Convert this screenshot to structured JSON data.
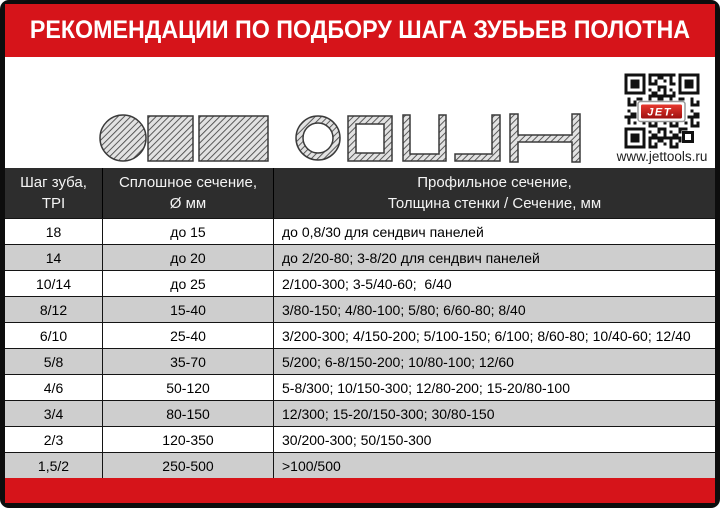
{
  "title": "РЕКОМЕНДАЦИИ ПО ПОДБОРУ ШАГА ЗУБЬЕВ ПОЛОТНА",
  "website": "www.jettools.ru",
  "qr_logo": "JET.",
  "colors": {
    "brand_red": "#d6141a",
    "table_header_bg": "#2d2d2d",
    "row_alt_gray": "#cecece",
    "frame_black": "#0d0d0d"
  },
  "icons": [
    "solid-circle",
    "solid-square",
    "solid-rectangle",
    "pipe-profile",
    "box-tube-profile",
    "u-channel-profile",
    "l-angle-profile",
    "h-beam-profile",
    "qr-code",
    "jet-logo"
  ],
  "table": {
    "columns": [
      {
        "line1": "Шаг зуба,",
        "line2": "TPI"
      },
      {
        "line1": "Сплошное сечение,",
        "line2": "Ø мм"
      },
      {
        "line1": "Профильное сечение,",
        "line2": "Толщина стенки / Сечение, мм"
      }
    ],
    "rows": [
      {
        "tpi": "18",
        "solid": "до 15",
        "profile": "до 0,8/30 для сендвич панелей"
      },
      {
        "tpi": "14",
        "solid": "до 20",
        "profile": "до 2/20-80; 3-8/20 для сендвич панелей"
      },
      {
        "tpi": "10/14",
        "solid": "до 25",
        "profile": "2/100-300; 3-5/40-60;  6/40"
      },
      {
        "tpi": "8/12",
        "solid": "15-40",
        "profile": "3/80-150; 4/80-100; 5/80; 6/60-80; 8/40"
      },
      {
        "tpi": "6/10",
        "solid": "25-40",
        "profile": "3/200-300; 4/150-200; 5/100-150; 6/100; 8/60-80; 10/40-60; 12/40"
      },
      {
        "tpi": "5/8",
        "solid": "35-70",
        "profile": "5/200; 6-8/150-200; 10/80-100; 12/60"
      },
      {
        "tpi": "4/6",
        "solid": "50-120",
        "profile": "5-8/300; 10/150-300; 12/80-200; 15-20/80-100"
      },
      {
        "tpi": "3/4",
        "solid": "80-150",
        "profile": "12/300; 15-20/150-300; 30/80-150"
      },
      {
        "tpi": "2/3",
        "solid": "120-350",
        "profile": "30/200-300; 50/150-300"
      },
      {
        "tpi": "1,5/2",
        "solid": "250-500",
        "profile": ">100/500"
      }
    ]
  }
}
